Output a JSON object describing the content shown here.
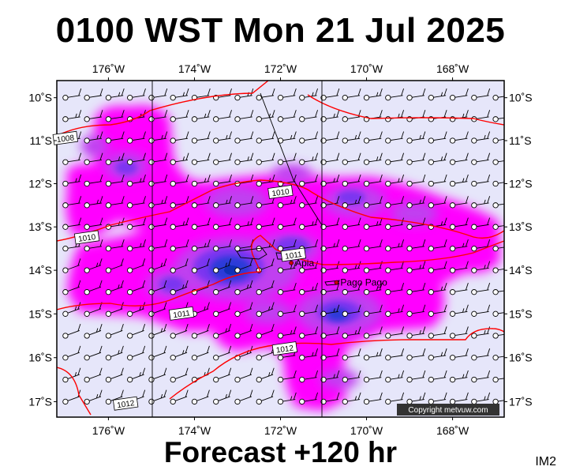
{
  "header": {
    "title": "0100 WST Mon 21 Jul 2025"
  },
  "footer": {
    "subtitle": "Forecast +120 hr",
    "code": "IM2"
  },
  "map": {
    "projection": "mercator",
    "lon_range": [
      -177.2,
      -166.8
    ],
    "lat_range": [
      -17.35,
      -9.6
    ],
    "lon_ticks": [
      {
        "value": -176,
        "label": "176˚W"
      },
      {
        "value": -174,
        "label": "174˚W"
      },
      {
        "value": -172,
        "label": "172˚W"
      },
      {
        "value": -170,
        "label": "170˚W"
      },
      {
        "value": -168,
        "label": "168˚W"
      }
    ],
    "lat_ticks": [
      {
        "value": -10,
        "label": "10˚S"
      },
      {
        "value": -11,
        "label": "11˚S"
      },
      {
        "value": -12,
        "label": "12˚S"
      },
      {
        "value": -13,
        "label": "13˚S"
      },
      {
        "value": -14,
        "label": "14˚S"
      },
      {
        "value": -15,
        "label": "15˚S"
      },
      {
        "value": -16,
        "label": "16˚S"
      },
      {
        "value": -17,
        "label": "17˚S"
      }
    ],
    "colors": {
      "background": "#e6e6fa",
      "precip_light": "#ff00ff",
      "precip_medium": "#c040f0",
      "precip_heavy": "#7a36f0",
      "precip_heaviest": "#2a3ad8",
      "isobar": "#ff0000",
      "barb": "#000000"
    },
    "isobar_labels": [
      {
        "text": "1008",
        "lon": -177.0,
        "lat": -10.95
      },
      {
        "text": "1010",
        "lon": -172.0,
        "lat": -12.2
      },
      {
        "text": "1010",
        "lon": -176.5,
        "lat": -13.25
      },
      {
        "text": "1011",
        "lon": -171.7,
        "lat": -13.65
      },
      {
        "text": "1011",
        "lon": -174.3,
        "lat": -15.0
      },
      {
        "text": "1012",
        "lon": -171.9,
        "lat": -15.8
      },
      {
        "text": "1012",
        "lon": -175.6,
        "lat": -17.05
      }
    ],
    "places": [
      {
        "name": "Apia",
        "lon": -171.75,
        "lat": -13.83
      },
      {
        "name": "Pago Pago",
        "lon": -170.7,
        "lat": -14.28
      }
    ],
    "wind_barbs": "10-15 kt E to ESE trade winds across the domain",
    "copyright": "Copyright metvuw.com"
  }
}
